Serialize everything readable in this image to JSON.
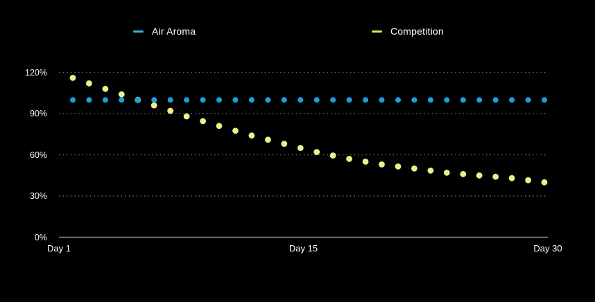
{
  "window": {
    "background_color": "#000000"
  },
  "legend": {
    "items": [
      {
        "label": "Air Aroma",
        "color": "#3fb3e6"
      },
      {
        "label": "Competition",
        "color": "#e7e24a"
      }
    ]
  },
  "chart_data": {
    "type": "scatter",
    "title": "",
    "xlabel": "",
    "ylabel": "",
    "legend_position": "top",
    "grid": "dotted horizontal gridlines, solid baseline at 0%",
    "x_tick_labels": [
      "Day 1",
      "Day 15",
      "Day 30"
    ],
    "y_tick_labels": [
      "120%",
      "90%",
      "60%",
      "30%",
      "0%"
    ],
    "y_tick_values": [
      120,
      90,
      60,
      30,
      0
    ],
    "ylim": [
      0,
      126
    ],
    "x": [
      1,
      2,
      3,
      4,
      5,
      6,
      7,
      8,
      9,
      10,
      11,
      12,
      13,
      14,
      15,
      16,
      17,
      18,
      19,
      20,
      21,
      22,
      23,
      24,
      25,
      26,
      27,
      28,
      29,
      30
    ],
    "series": [
      {
        "name": "Air Aroma",
        "color": "#1aa1db",
        "marker": "dot",
        "values": [
          100,
          100,
          100,
          100,
          100,
          100,
          100,
          100,
          100,
          100,
          100,
          100,
          100,
          100,
          100,
          100,
          100,
          100,
          100,
          100,
          100,
          100,
          100,
          100,
          100,
          100,
          100,
          100,
          100,
          100
        ]
      },
      {
        "name": "Competition",
        "color": "#f1ee8b",
        "marker": "dot",
        "values": [
          116,
          112,
          108,
          104,
          100,
          96,
          92,
          88,
          84.5,
          81,
          77.5,
          74,
          71,
          68,
          65,
          62,
          59.5,
          57,
          55,
          53,
          51.5,
          50,
          48.5,
          47,
          46,
          45,
          44,
          43,
          41.5,
          40
        ]
      }
    ]
  }
}
